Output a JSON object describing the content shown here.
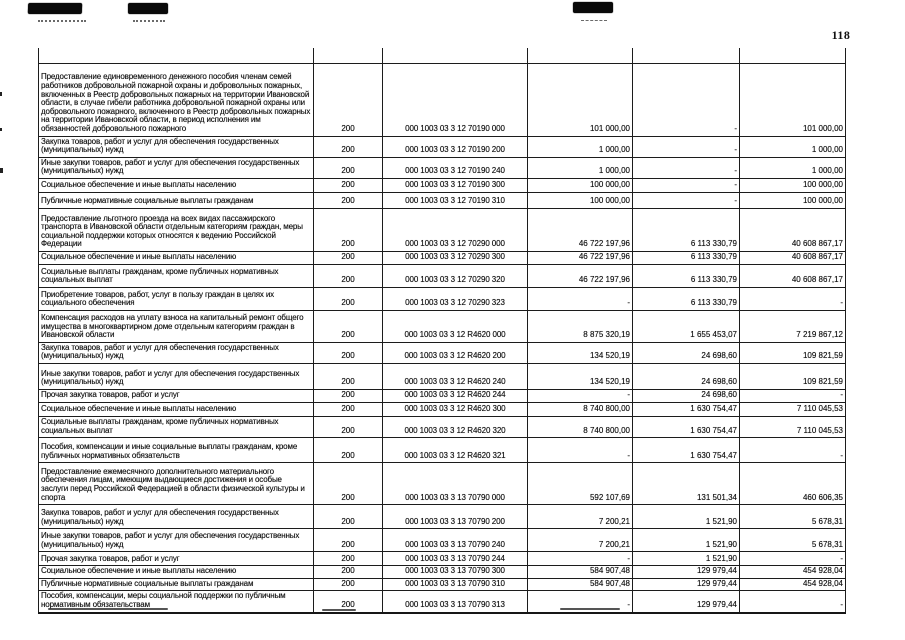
{
  "page": {
    "number": "118"
  },
  "table": {
    "kvr_value": "200",
    "rows": [
      {
        "label": "Предоставление единовременного денежного пособия членам семей работников добровольной пожарной охраны и добровольных пожарных, включенных в Реестр добровольных пожарных на территории Ивановской области, в случае гибели работника добровольной пожарной охраны или добровольного пожарного, включенного в Реестр добровольных пожарных на территории Ивановской области, в период исполнения им обязанностей добровольного пожарного",
        "kvr": "200",
        "code": "000 1003 03 3 12 70190 000",
        "amount_1": "101 000,00",
        "amount_2": "-",
        "amount_3": "101 000,00"
      },
      {
        "label": "Закупка товаров, работ и услуг для обеспечения государственных (муниципальных) нужд",
        "kvr": "200",
        "code": "000 1003 03 3 12 70190 200",
        "amount_1": "1 000,00",
        "amount_2": "-",
        "amount_3": "1 000,00"
      },
      {
        "label": "Иные закупки товаров, работ и услуг для обеспечения государственных (муниципальных) нужд",
        "kvr": "200",
        "code": "000 1003 03 3 12 70190 240",
        "amount_1": "1 000,00",
        "amount_2": "-",
        "amount_3": "1 000,00"
      },
      {
        "label": "Социальное обеспечение и иные выплаты населению",
        "kvr": "200",
        "code": "000 1003 03 3 12 70190 300",
        "amount_1": "100 000,00",
        "amount_2": "-",
        "amount_3": "100 000,00"
      },
      {
        "label": "Публичные нормативные социальные выплаты гражданам",
        "kvr": "200",
        "code": "000 1003 03 3 12 70190 310",
        "amount_1": "100 000,00",
        "amount_2": "-",
        "amount_3": "100 000,00"
      },
      {
        "label": "Предоставление льготного проезда на всех видах пассажирского транспорта в Ивановской области отдельным категориям граждан, меры социальной поддержки которых относятся к ведению Российской Федерации",
        "kvr": "200",
        "code": "000 1003 03 3 12 70290 000",
        "amount_1": "46 722 197,96",
        "amount_2": "6 113 330,79",
        "amount_3": "40 608 867,17"
      },
      {
        "label": "Социальное обеспечение и иные выплаты населению",
        "kvr": "200",
        "code": "000 1003 03 3 12 70290 300",
        "amount_1": "46 722 197,96",
        "amount_2": "6 113 330,79",
        "amount_3": "40 608 867,17"
      },
      {
        "label": "Социальные выплаты гражданам, кроме публичных нормативных социальных выплат",
        "kvr": "200",
        "code": "000 1003 03 3 12 70290 320",
        "amount_1": "46 722 197,96",
        "amount_2": "6 113 330,79",
        "amount_3": "40 608 867,17"
      },
      {
        "label": "Приобретение товаров, работ, услуг в пользу граждан в целях их социального обеспечения",
        "kvr": "200",
        "code": "000 1003 03 3 12 70290 323",
        "amount_1": "-",
        "amount_2": "6 113 330,79",
        "amount_3": "-"
      },
      {
        "label": "Компенсация расходов на уплату взноса на капитальный ремонт общего имущества в многоквартирном доме отдельным категориям граждан в Ивановской области",
        "kvr": "200",
        "code": "000 1003 03 3 12 R4620 000",
        "amount_1": "8 875 320,19",
        "amount_2": "1 655 453,07",
        "amount_3": "7 219 867,12"
      },
      {
        "label": "Закупка товаров, работ и услуг для обеспечения государственных (муниципальных) нужд",
        "kvr": "200",
        "code": "000 1003 03 3 12 R4620 200",
        "amount_1": "134 520,19",
        "amount_2": "24 698,60",
        "amount_3": "109 821,59"
      },
      {
        "label": "Иные закупки товаров, работ и услуг для обеспечения государственных (муниципальных) нужд",
        "kvr": "200",
        "code": "000 1003 03 3 12 R4620 240",
        "amount_1": "134 520,19",
        "amount_2": "24 698,60",
        "amount_3": "109 821,59"
      },
      {
        "label": "Прочая закупка товаров, работ и услуг",
        "kvr": "200",
        "code": "000 1003 03 3 12 R4620 244",
        "amount_1": "-",
        "amount_2": "24 698,60",
        "amount_3": "-"
      },
      {
        "label": "Социальное обеспечение и иные выплаты населению",
        "kvr": "200",
        "code": "000 1003 03 3 12 R4620 300",
        "amount_1": "8 740 800,00",
        "amount_2": "1 630 754,47",
        "amount_3": "7 110 045,53"
      },
      {
        "label": "Социальные выплаты гражданам, кроме публичных нормативных социальных выплат",
        "kvr": "200",
        "code": "000 1003 03 3 12 R4620 320",
        "amount_1": "8 740 800,00",
        "amount_2": "1 630 754,47",
        "amount_3": "7 110 045,53"
      },
      {
        "label": "Пособия, компенсации и иные социальные выплаты гражданам, кроме публичных нормативных обязательств",
        "kvr": "200",
        "code": "000 1003 03 3 12 R4620 321",
        "amount_1": "-",
        "amount_2": "1 630 754,47",
        "amount_3": "-"
      },
      {
        "label": "Предоставление ежемесячного дополнительного материального обеспечения лицам, имеющим выдающиеся достижения и особые заслуги перед Российской Федерацией в области физической культуры и спорта",
        "kvr": "200",
        "code": "000 1003 03 3 13 70790 000",
        "amount_1": "592 107,69",
        "amount_2": "131 501,34",
        "amount_3": "460 606,35"
      },
      {
        "label": "Закупка товаров, работ и услуг для обеспечения государственных (муниципальных) нужд",
        "kvr": "200",
        "code": "000 1003 03 3 13 70790 200",
        "amount_1": "7 200,21",
        "amount_2": "1 521,90",
        "amount_3": "5 678,31"
      },
      {
        "label": "Иные закупки товаров, работ и услуг для обеспечения государственных (муниципальных) нужд",
        "kvr": "200",
        "code": "000 1003 03 3 13 70790 240",
        "amount_1": "7 200,21",
        "amount_2": "1 521,90",
        "amount_3": "5 678,31"
      },
      {
        "label": "Прочая закупка товаров, работ и услуг",
        "kvr": "200",
        "code": "000 1003 03 3 13 70790 244",
        "amount_1": "-",
        "amount_2": "1 521,90",
        "amount_3": "-"
      },
      {
        "label": "Социальное обеспечение и иные выплаты населению",
        "kvr": "200",
        "code": "000 1003 03 3 13 70790 300",
        "amount_1": "584 907,48",
        "amount_2": "129 979,44",
        "amount_3": "454 928,04"
      },
      {
        "label": "Публичные нормативные социальные выплаты гражданам",
        "kvr": "200",
        "code": "000 1003 03 3 13 70790 310",
        "amount_1": "584 907,48",
        "amount_2": "129 979,44",
        "amount_3": "454 928,04"
      },
      {
        "label": "Пособия, компенсации, меры социальной поддержки по публичным нормативным обязательствам",
        "kvr": "200",
        "code": "000 1003 03 3 13 70790 313",
        "amount_1": "-",
        "amount_2": "129 979,44",
        "amount_3": "-"
      }
    ]
  }
}
